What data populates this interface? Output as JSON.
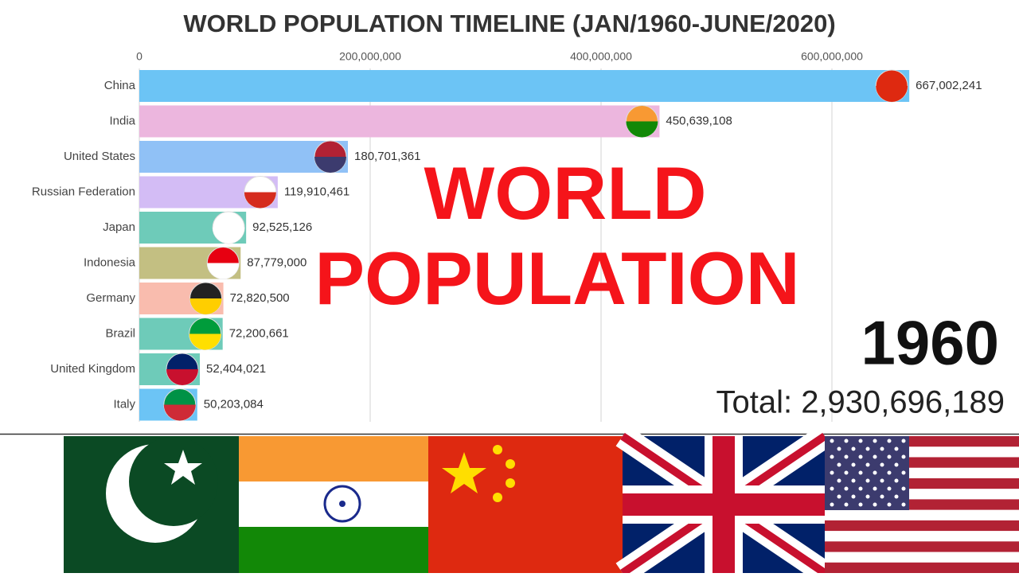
{
  "chart_data": {
    "type": "bar",
    "orientation": "horizontal",
    "title": "WORLD POPULATION TIMELINE (JAN/1960-JUNE/2020)",
    "categories": [
      "China",
      "India",
      "United States",
      "Russian Federation",
      "Japan",
      "Indonesia",
      "Germany",
      "Brazil",
      "United Kingdom",
      "Italy"
    ],
    "values": [
      667002241,
      450639108,
      180701361,
      119910461,
      92525126,
      87779000,
      72820500,
      72200661,
      52404021,
      50203084
    ],
    "value_labels": [
      "667,002,241",
      "450,639,108",
      "180,701,361",
      "119,910,461",
      "92,525,126",
      "87,779,000",
      "72,820,500",
      "72,200,661",
      "52,404,021",
      "50,203,084"
    ],
    "colors": [
      "#6cc4f5",
      "#ecb6de",
      "#90c1f6",
      "#d3bcf5",
      "#6ecbb9",
      "#c3bf82",
      "#f9bcae",
      "#6ecbb9",
      "#6ecbb9",
      "#6cc4f5"
    ],
    "xlim": [
      0,
      700000000
    ],
    "xticks": [
      0,
      {
        "value": 200000000,
        "label": "200,000,000"
      },
      {
        "value": 400000000,
        "label": "400,000,000"
      },
      {
        "value": 600000000,
        "label": "600,000,000"
      }
    ],
    "grid": true,
    "year": "1960",
    "total": "Total: 2,930,696,189"
  },
  "overlay_title": [
    "WORLD",
    "POPULATION"
  ]
}
